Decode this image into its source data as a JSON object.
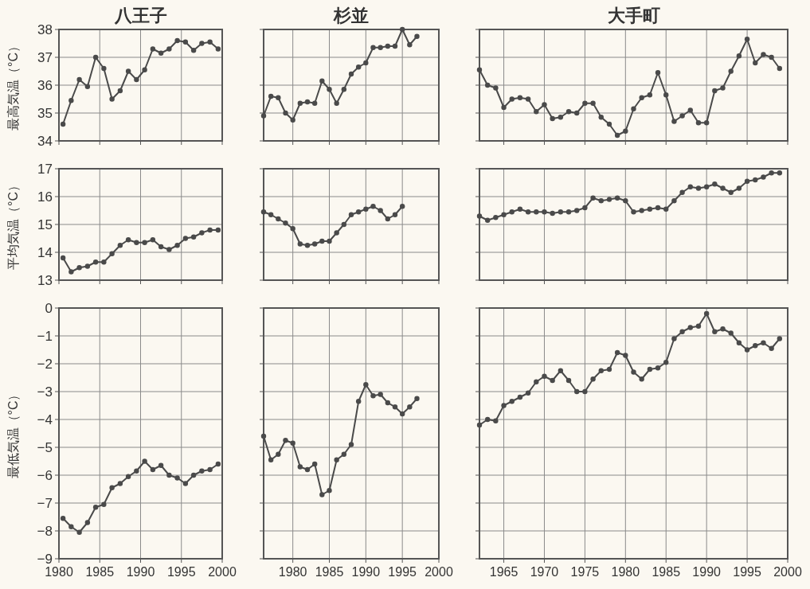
{
  "chart_data": [
    {
      "type": "line",
      "title": "八王子",
      "ylabel": "最高気温（°C）",
      "x": [
        1980.5,
        1981.5,
        1982.5,
        1983.5,
        1984.5,
        1985.5,
        1986.5,
        1987.5,
        1988.5,
        1989.5,
        1990.5,
        1991.5,
        1992.5,
        1993.5,
        1994.5,
        1995.5,
        1996.5,
        1997.5,
        1998.5,
        1999.5
      ],
      "series": [
        {
          "color": "#4a4a4a",
          "values": [
            34.6,
            35.45,
            36.2,
            35.95,
            37.0,
            36.6,
            35.5,
            35.8,
            36.5,
            36.2,
            36.55,
            37.3,
            37.15,
            37.3,
            37.6,
            37.55,
            37.25,
            37.5,
            37.55,
            37.3
          ]
        }
      ],
      "xlim": [
        1980,
        2000
      ],
      "ylim": [
        34,
        38
      ],
      "xticks": [
        1980,
        1985,
        1990,
        1995,
        2000
      ],
      "yticks": [
        34,
        35,
        36,
        37,
        38
      ],
      "grid": true,
      "marker": "circle",
      "line_style": "solid",
      "tick_labels": "y"
    },
    {
      "type": "line",
      "title": "杉並",
      "x": [
        1976,
        1977,
        1978,
        1979,
        1980,
        1981,
        1982,
        1983,
        1984,
        1985,
        1986,
        1987,
        1988,
        1989,
        1990,
        1991,
        1992,
        1993,
        1994,
        1995,
        1996,
        1997
      ],
      "series": [
        {
          "color": "#4a4a4a",
          "values": [
            34.9,
            35.6,
            35.55,
            35.0,
            34.75,
            35.35,
            35.4,
            35.35,
            36.15,
            35.85,
            35.35,
            35.85,
            36.4,
            36.65,
            36.8,
            37.35,
            37.35,
            37.4,
            37.4,
            38.0,
            37.45,
            37.75
          ]
        }
      ],
      "xlim": [
        1976,
        2000
      ],
      "ylim": [
        34,
        38
      ],
      "xticks": [
        1980,
        1985,
        1990,
        1995,
        2000
      ],
      "yticks": [
        34,
        35,
        36,
        37,
        38
      ],
      "grid": true,
      "marker": "circle",
      "line_style": "solid",
      "tick_labels": false
    },
    {
      "type": "line",
      "title": "大手町",
      "x": [
        1962,
        1963,
        1964,
        1965,
        1966,
        1967,
        1968,
        1969,
        1970,
        1971,
        1972,
        1973,
        1974,
        1975,
        1976,
        1977,
        1978,
        1979,
        1980,
        1981,
        1982,
        1983,
        1984,
        1985,
        1986,
        1987,
        1988,
        1989,
        1990,
        1991,
        1992,
        1993,
        1994,
        1995,
        1996,
        1997,
        1998,
        1999
      ],
      "series": [
        {
          "color": "#4a4a4a",
          "values": [
            36.55,
            36.0,
            35.9,
            35.2,
            35.5,
            35.55,
            35.5,
            35.05,
            35.3,
            34.8,
            34.85,
            35.05,
            35.0,
            35.35,
            35.35,
            34.85,
            34.6,
            34.2,
            34.35,
            35.15,
            35.55,
            35.65,
            36.45,
            35.65,
            34.7,
            34.9,
            35.1,
            34.65,
            34.65,
            35.8,
            35.9,
            36.5,
            37.05,
            37.65,
            36.8,
            37.1,
            37.0,
            36.6
          ]
        }
      ],
      "xlim": [
        1962,
        2000
      ],
      "ylim": [
        34,
        38
      ],
      "xticks": [
        1965,
        1970,
        1975,
        1980,
        1985,
        1990,
        1995,
        2000
      ],
      "yticks": [
        34,
        35,
        36,
        37,
        38
      ],
      "grid": true,
      "marker": "circle",
      "line_style": "solid",
      "tick_labels": false
    },
    {
      "type": "line",
      "ylabel": "平均気温（°C）",
      "x": [
        1980.5,
        1981.5,
        1982.5,
        1983.5,
        1984.5,
        1985.5,
        1986.5,
        1987.5,
        1988.5,
        1989.5,
        1990.5,
        1991.5,
        1992.5,
        1993.5,
        1994.5,
        1995.5,
        1996.5,
        1997.5,
        1998.5,
        1999.5
      ],
      "series": [
        {
          "color": "#4a4a4a",
          "values": [
            13.8,
            13.3,
            13.45,
            13.5,
            13.65,
            13.65,
            13.95,
            14.25,
            14.45,
            14.35,
            14.35,
            14.45,
            14.2,
            14.1,
            14.25,
            14.5,
            14.55,
            14.7,
            14.8,
            14.8
          ]
        }
      ],
      "xlim": [
        1980,
        2000
      ],
      "ylim": [
        13,
        17
      ],
      "xticks": [
        1980,
        1985,
        1990,
        1995,
        2000
      ],
      "yticks": [
        13,
        14,
        15,
        16,
        17
      ],
      "grid": true,
      "marker": "circle",
      "line_style": "solid",
      "tick_labels": "y"
    },
    {
      "type": "line",
      "x": [
        1976,
        1977,
        1978,
        1979,
        1980,
        1981,
        1982,
        1983,
        1984,
        1985,
        1986,
        1987,
        1988,
        1989,
        1990,
        1991,
        1992,
        1993,
        1994,
        1995
      ],
      "series": [
        {
          "color": "#4a4a4a",
          "values": [
            15.45,
            15.35,
            15.2,
            15.05,
            14.85,
            14.3,
            14.25,
            14.3,
            14.4,
            14.4,
            14.7,
            15.0,
            15.35,
            15.45,
            15.55,
            15.65,
            15.5,
            15.2,
            15.35,
            15.65
          ]
        }
      ],
      "xlim": [
        1976,
        2000
      ],
      "ylim": [
        13,
        17
      ],
      "xticks": [
        1980,
        1985,
        1990,
        1995,
        2000
      ],
      "yticks": [
        13,
        14,
        15,
        16,
        17
      ],
      "grid": true,
      "marker": "circle",
      "line_style": "solid",
      "tick_labels": false
    },
    {
      "type": "line",
      "x": [
        1962,
        1963,
        1964,
        1965,
        1966,
        1967,
        1968,
        1969,
        1970,
        1971,
        1972,
        1973,
        1974,
        1975,
        1976,
        1977,
        1978,
        1979,
        1980,
        1981,
        1982,
        1983,
        1984,
        1985,
        1986,
        1987,
        1988,
        1989,
        1990,
        1991,
        1992,
        1993,
        1994,
        1995,
        1996,
        1997,
        1998,
        1999
      ],
      "series": [
        {
          "color": "#4a4a4a",
          "values": [
            15.3,
            15.15,
            15.25,
            15.35,
            15.45,
            15.55,
            15.45,
            15.45,
            15.45,
            15.4,
            15.45,
            15.45,
            15.5,
            15.6,
            15.95,
            15.85,
            15.9,
            15.95,
            15.85,
            15.45,
            15.5,
            15.55,
            15.6,
            15.55,
            15.85,
            16.15,
            16.35,
            16.3,
            16.35,
            16.45,
            16.3,
            16.15,
            16.3,
            16.55,
            16.6,
            16.7,
            16.85,
            16.85
          ]
        }
      ],
      "xlim": [
        1962,
        2000
      ],
      "ylim": [
        13,
        17
      ],
      "xticks": [
        1965,
        1970,
        1975,
        1980,
        1985,
        1990,
        1995,
        2000
      ],
      "yticks": [
        13,
        14,
        15,
        16,
        17
      ],
      "grid": true,
      "marker": "circle",
      "line_style": "solid",
      "tick_labels": false
    },
    {
      "type": "line",
      "ylabel": "最低気温（°C）",
      "x": [
        1980.5,
        1981.5,
        1982.5,
        1983.5,
        1984.5,
        1985.5,
        1986.5,
        1987.5,
        1988.5,
        1989.5,
        1990.5,
        1991.5,
        1992.5,
        1993.5,
        1994.5,
        1995.5,
        1996.5,
        1997.5,
        1998.5,
        1999.5
      ],
      "series": [
        {
          "color": "#4a4a4a",
          "values": [
            -7.55,
            -7.85,
            -8.05,
            -7.7,
            -7.15,
            -7.05,
            -6.45,
            -6.3,
            -6.05,
            -5.85,
            -5.5,
            -5.8,
            -5.65,
            -6.0,
            -6.1,
            -6.3,
            -6.0,
            -5.85,
            -5.8,
            -5.6
          ]
        }
      ],
      "xlim": [
        1980,
        2000
      ],
      "ylim": [
        -9,
        0
      ],
      "xticks": [
        1980,
        1985,
        1990,
        1995,
        2000
      ],
      "yticks": [
        -9,
        -8,
        -7,
        -6,
        -5,
        -4,
        -3,
        -2,
        -1,
        0
      ],
      "grid": true,
      "marker": "circle",
      "line_style": "solid"
    },
    {
      "type": "line",
      "x": [
        1976,
        1977,
        1978,
        1979,
        1980,
        1981,
        1982,
        1983,
        1984,
        1985,
        1986,
        1987,
        1988,
        1989,
        1990,
        1991,
        1992,
        1993,
        1994,
        1995,
        1996,
        1997
      ],
      "series": [
        {
          "color": "#4a4a4a",
          "values": [
            -4.6,
            -5.45,
            -5.25,
            -4.75,
            -4.85,
            -5.7,
            -5.8,
            -5.6,
            -6.7,
            -6.55,
            -5.45,
            -5.25,
            -4.9,
            -3.35,
            -2.75,
            -3.15,
            -3.1,
            -3.4,
            -3.55,
            -3.8,
            -3.55,
            -3.25
          ]
        }
      ],
      "xlim": [
        1976,
        2000
      ],
      "ylim": [
        -9,
        0
      ],
      "xticks": [
        1980,
        1985,
        1990,
        1995,
        2000
      ],
      "yticks": [
        -9,
        -8,
        -7,
        -6,
        -5,
        -4,
        -3,
        -2,
        -1,
        0
      ],
      "grid": true,
      "marker": "circle",
      "line_style": "solid",
      "tick_labels": "x"
    },
    {
      "type": "line",
      "x": [
        1962,
        1963,
        1964,
        1965,
        1966,
        1967,
        1968,
        1969,
        1970,
        1971,
        1972,
        1973,
        1974,
        1975,
        1976,
        1977,
        1978,
        1979,
        1980,
        1981,
        1982,
        1983,
        1984,
        1985,
        1986,
        1987,
        1988,
        1989,
        1990,
        1991,
        1992,
        1993,
        1994,
        1995,
        1996,
        1997,
        1998,
        1999
      ],
      "series": [
        {
          "color": "#4a4a4a",
          "values": [
            -4.2,
            -4.0,
            -4.05,
            -3.5,
            -3.35,
            -3.2,
            -3.05,
            -2.65,
            -2.45,
            -2.6,
            -2.25,
            -2.6,
            -3.0,
            -3.0,
            -2.55,
            -2.25,
            -2.2,
            -1.6,
            -1.7,
            -2.3,
            -2.55,
            -2.2,
            -2.15,
            -1.95,
            -1.1,
            -0.85,
            -0.7,
            -0.65,
            -0.2,
            -0.85,
            -0.75,
            -0.9,
            -1.25,
            -1.5,
            -1.35,
            -1.25,
            -1.45,
            -1.1
          ]
        }
      ],
      "xlim": [
        1962,
        2000
      ],
      "ylim": [
        -9,
        0
      ],
      "xticks": [
        1965,
        1970,
        1975,
        1980,
        1985,
        1990,
        1995,
        2000
      ],
      "yticks": [
        -9,
        -8,
        -7,
        -6,
        -5,
        -4,
        -3,
        -2,
        -1,
        0
      ],
      "grid": true,
      "marker": "circle",
      "line_style": "solid",
      "tick_labels": "x"
    }
  ]
}
